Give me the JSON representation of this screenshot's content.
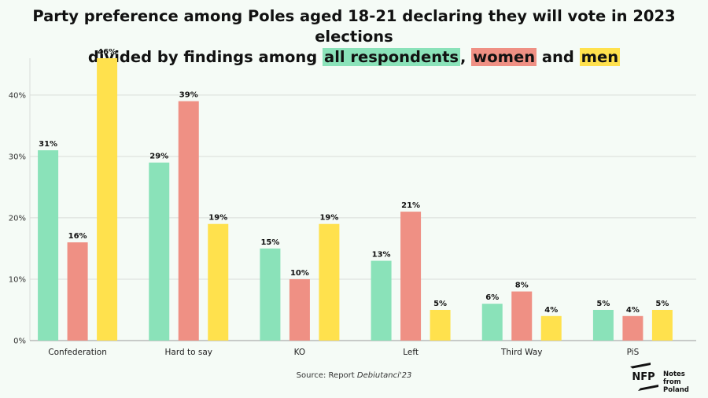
{
  "title": {
    "line1": "Party preference among Poles aged 18-21 declaring they will vote in 2023 elections",
    "line2_prefix": "divided by findings among ",
    "all_label": "all respondents",
    "sep1": ", ",
    "women_label": "women",
    "sep2": " and ",
    "men_label": "men"
  },
  "source": {
    "prefix": "Source: Report ",
    "report": "Debiutanci'23"
  },
  "logo": {
    "mark": "NFP",
    "line1": "Notes from",
    "line2": "Poland"
  },
  "colors": {
    "all": "#8ae2b9",
    "women": "#ef9084",
    "men": "#ffe14d",
    "grid": "#d9ddd9",
    "axis": "#999999",
    "background": "#f5fbf6"
  },
  "chart_data": {
    "type": "bar",
    "categories": [
      "Confederation",
      "Hard to say",
      "KO",
      "Left",
      "Third Way",
      "PiS"
    ],
    "series": [
      {
        "key": "all",
        "values": [
          31,
          29,
          15,
          13,
          6,
          5
        ]
      },
      {
        "key": "women",
        "values": [
          16,
          39,
          10,
          21,
          8,
          4
        ]
      },
      {
        "key": "men",
        "values": [
          46,
          19,
          19,
          5,
          4,
          5
        ]
      }
    ],
    "ylim": [
      0,
      46
    ],
    "yticks": [
      "0%",
      "10%",
      "20%",
      "30%",
      "40%"
    ],
    "ytick_values": [
      0,
      10,
      20,
      30,
      40
    ],
    "value_suffix": "%",
    "grid": true
  }
}
